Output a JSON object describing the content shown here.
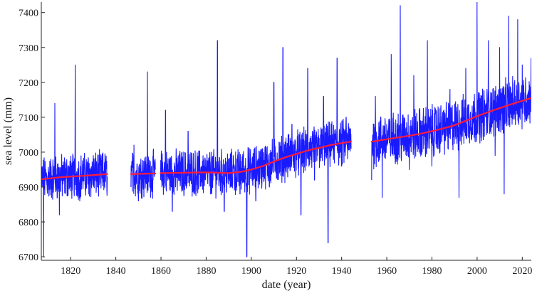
{
  "chart_data": {
    "type": "line",
    "xlabel": "date (year)",
    "ylabel": "sea level (mm)",
    "xlim": [
      1807,
      2024
    ],
    "ylim": [
      6690,
      7430
    ],
    "x_ticks": [
      1820,
      1840,
      1860,
      1880,
      1900,
      1920,
      1940,
      1960,
      1980,
      2000,
      2020
    ],
    "y_ticks": [
      6700,
      6800,
      6900,
      7000,
      7100,
      7200,
      7300,
      7400
    ],
    "grid": false,
    "segments": [
      {
        "start": 1807.0,
        "end": 1836.2
      },
      {
        "start": 1846.7,
        "end": 1857.5
      },
      {
        "start": 1859.8,
        "end": 1944.2
      },
      {
        "start": 1953.3,
        "end": 2023.9
      }
    ],
    "series": [
      {
        "color": "#1a1aff",
        "x": [
          1807.0,
          1808.0,
          1810.0,
          1813.0,
          1815.0,
          1818.0,
          1820.0,
          1822.0,
          1824.0,
          1826.0,
          1828.0,
          1830.0,
          1832.0,
          1834.0,
          1836.2,
          1846.7,
          1848.0,
          1850.0,
          1852.0,
          1854.0,
          1856.0,
          1857.5,
          1859.8,
          1862.0,
          1865.0,
          1868.0,
          1870.0,
          1872.0,
          1875.0,
          1878.0,
          1880.0,
          1882.0,
          1885.0,
          1888.0,
          1890.0,
          1892.0,
          1895.0,
          1898.0,
          1900.0,
          1902.0,
          1905.0,
          1908.0,
          1910.0,
          1912.0,
          1914.0,
          1916.0,
          1918.0,
          1920.0,
          1922.0,
          1925.0,
          1928.0,
          1930.0,
          1932.0,
          1934.0,
          1936.0,
          1938.0,
          1940.0,
          1942.0,
          1944.2,
          1953.3,
          1955.0,
          1958.0,
          1960.0,
          1962.0,
          1965.0,
          1966.0,
          1968.0,
          1970.0,
          1972.0,
          1975.0,
          1978.0,
          1980.0,
          1982.0,
          1985.0,
          1988.0,
          1990.0,
          1992.0,
          1995.0,
          1998.0,
          2000.0,
          2002.0,
          2005.0,
          2008.0,
          2010.0,
          2012.0,
          2014.0,
          2016.0,
          2018.0,
          2020.0,
          2022.0,
          2023.9
        ],
        "y": [
          6920,
          6700,
          6930,
          7140,
          6820,
          6940,
          6900,
          7250,
          6860,
          6960,
          6880,
          6990,
          6900,
          6950,
          6930,
          6900,
          7020,
          6860,
          6940,
          7230,
          6900,
          6950,
          6920,
          7120,
          6830,
          6970,
          6900,
          7060,
          6880,
          6960,
          6940,
          6880,
          7320,
          6830,
          6940,
          6990,
          6880,
          6700,
          6960,
          6860,
          7010,
          6900,
          7200,
          6980,
          7300,
          6960,
          7080,
          7000,
          6820,
          7240,
          6920,
          7040,
          7160,
          6740,
          7050,
          7270,
          6960,
          7100,
          7010,
          6920,
          7160,
          6870,
          7080,
          7280,
          6980,
          7420,
          7090,
          6950,
          7220,
          7040,
          7320,
          6960,
          7120,
          7060,
          7180,
          7090,
          6870,
          7240,
          7050,
          7430,
          7060,
          7320,
          6990,
          7300,
          6880,
          7390,
          7110,
          7380,
          7250,
          7090,
          7270
        ]
      },
      {
        "color": "#ff1a3a",
        "x": [
          1807.0,
          1815.0,
          1825.0,
          1836.2,
          1846.7,
          1857.5,
          1859.8,
          1870.0,
          1880.0,
          1890.0,
          1895.0,
          1900.0,
          1905.0,
          1910.0,
          1915.0,
          1920.0,
          1925.0,
          1930.0,
          1935.0,
          1940.0,
          1944.2,
          1953.3,
          1960.0,
          1965.0,
          1970.0,
          1975.0,
          1980.0,
          1985.0,
          1990.0,
          1995.0,
          2000.0,
          2005.0,
          2010.0,
          2015.0,
          2020.0,
          2023.9
        ],
        "y": [
          6922,
          6928,
          6932,
          6937,
          6937,
          6939,
          6940,
          6941,
          6942,
          6940,
          6943,
          6950,
          6960,
          6973,
          6985,
          6995,
          7005,
          7012,
          7020,
          7026,
          7030,
          7030,
          7037,
          7042,
          7047,
          7053,
          7060,
          7068,
          7077,
          7090,
          7103,
          7115,
          7126,
          7137,
          7147,
          7155
        ]
      }
    ]
  }
}
